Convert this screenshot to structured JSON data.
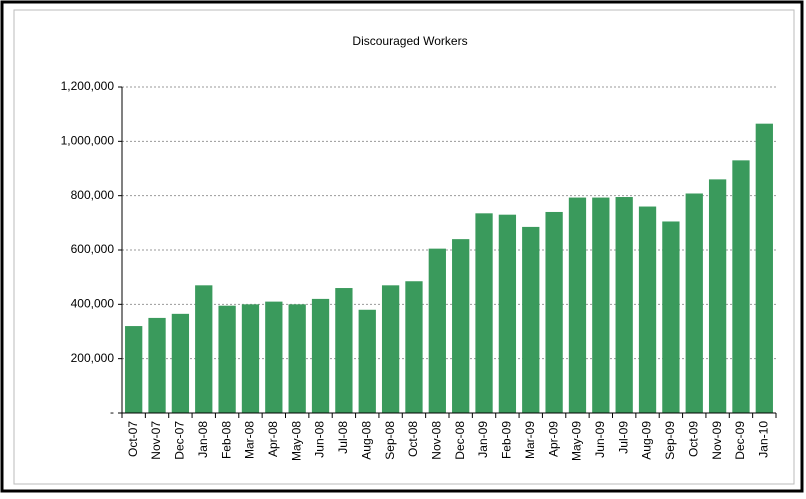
{
  "chart_data": {
    "type": "bar",
    "title": "Discouraged Workers",
    "categories": [
      "Oct-07",
      "Nov-07",
      "Dec-07",
      "Jan-08",
      "Feb-08",
      "Mar-08",
      "Apr-08",
      "May-08",
      "Jun-08",
      "Jul-08",
      "Aug-08",
      "Sep-08",
      "Oct-08",
      "Nov-08",
      "Dec-08",
      "Jan-09",
      "Feb-09",
      "Mar-09",
      "Apr-09",
      "May-09",
      "Jun-09",
      "Jul-09",
      "Aug-09",
      "Sep-09",
      "Oct-09",
      "Nov-09",
      "Dec-09",
      "Jan-10"
    ],
    "values": [
      320000,
      350000,
      365000,
      470000,
      395000,
      400000,
      410000,
      400000,
      420000,
      460000,
      380000,
      470000,
      485000,
      605000,
      640000,
      735000,
      730000,
      685000,
      740000,
      793000,
      793000,
      795000,
      760000,
      705000,
      808000,
      860000,
      930000,
      1065000
    ],
    "color": "#3a9a5c",
    "ylim": [
      0,
      1200000
    ],
    "yticks": [
      {
        "value": 0,
        "label": "-"
      },
      {
        "value": 200000,
        "label": "200,000"
      },
      {
        "value": 400000,
        "label": "400,000"
      },
      {
        "value": 600000,
        "label": "600,000"
      },
      {
        "value": 800000,
        "label": "800,000"
      },
      {
        "value": 1000000,
        "label": "1,000,000"
      },
      {
        "value": 1200000,
        "label": "1,200,000"
      }
    ],
    "grid": true
  }
}
